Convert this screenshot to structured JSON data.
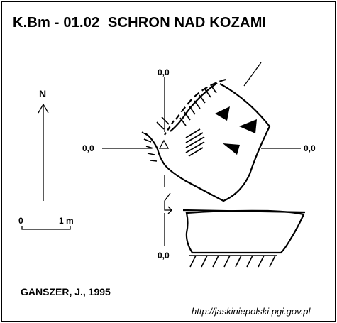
{
  "header": {
    "title": "K.Bm - 01.02  SCHRON NAD KOZAMI"
  },
  "north": {
    "label": "N"
  },
  "scale": {
    "zero": "0",
    "length": "1 m"
  },
  "grid": {
    "top": "0,0",
    "left": "0,0",
    "right": "0,0",
    "bottom": "0,0"
  },
  "footer": {
    "author": "GANSZER, J., 1995",
    "url": "http://jaskiniepolski.pgi.gov.pl"
  },
  "colors": {
    "ink": "#000000",
    "background": "#ffffff"
  }
}
